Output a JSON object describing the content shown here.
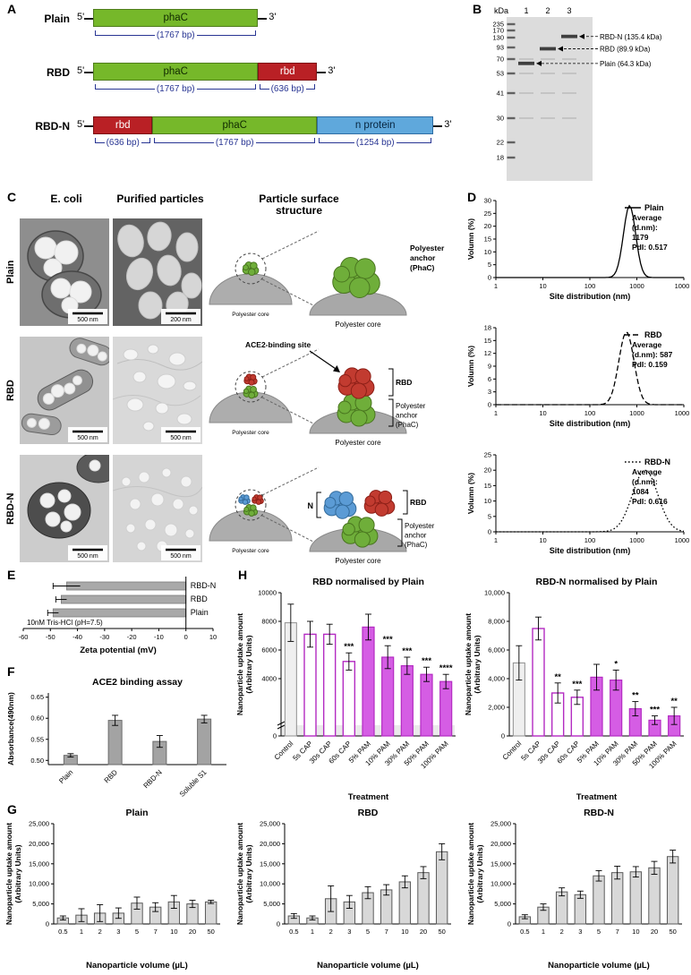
{
  "panelA": {
    "label": "A",
    "constructs": [
      {
        "name": "Plain",
        "five_prime": "5'",
        "three_prime": "3'",
        "segments": [
          {
            "gene": "phaC",
            "bp": 1767,
            "bp_label": "(1767 bp)",
            "fill": "#76b82a",
            "stroke": "#4f7d1c",
            "text_color": "#102a00"
          }
        ]
      },
      {
        "name": "RBD",
        "five_prime": "5'",
        "three_prime": "3'",
        "segments": [
          {
            "gene": "phaC",
            "bp": 1767,
            "bp_label": "(1767 bp)",
            "fill": "#76b82a",
            "stroke": "#4f7d1c",
            "text_color": "#102a00"
          },
          {
            "gene": "rbd",
            "bp": 636,
            "bp_label": "(636 bp)",
            "fill": "#b92025",
            "stroke": "#7e1215",
            "text_color": "#ffffff"
          }
        ]
      },
      {
        "name": "RBD-N",
        "five_prime": "5'",
        "three_prime": "3'",
        "segments": [
          {
            "gene": "rbd",
            "bp": 636,
            "bp_label": "(636 bp)",
            "fill": "#b92025",
            "stroke": "#7e1215",
            "text_color": "#ffffff"
          },
          {
            "gene": "phaC",
            "bp": 1767,
            "bp_label": "(1767 bp)",
            "fill": "#76b82a",
            "stroke": "#4f7d1c",
            "text_color": "#102a00"
          },
          {
            "gene": "n protein",
            "bp": 1254,
            "bp_label": "(1254 bp)",
            "fill": "#5fa8dc",
            "stroke": "#2e6da4",
            "text_color": "#06243e"
          }
        ]
      }
    ]
  },
  "panelB": {
    "label": "B",
    "kda_header": "kDa",
    "lane_numbers": [
      "1",
      "2",
      "3"
    ],
    "ladder": [
      "235",
      "170",
      "130",
      "93",
      "70",
      "53",
      "41",
      "30",
      "22",
      "18"
    ],
    "bands": [
      {
        "lane": 3,
        "kda": 135.4,
        "label": "RBD-N (135.4 kDa)"
      },
      {
        "lane": 2,
        "kda": 89.9,
        "label": "RBD (89.9 kDa)"
      },
      {
        "lane": 1,
        "kda": 64.3,
        "label": "Plain (64.3 kDa)"
      }
    ]
  },
  "panelC": {
    "label": "C",
    "col_headers": [
      "E. coli",
      "Purified particles",
      "Particle surface structure"
    ],
    "diagram_colors": {
      "green": "#6fae3a",
      "green_s": "#49751f",
      "red": "#c23b30",
      "red_s": "#8c1f17",
      "blue": "#5b9bd5",
      "blue_s": "#336b9b",
      "core": "#a8a8a8"
    },
    "rows": [
      {
        "name": "Plain",
        "ecoli_scale": "500 nm",
        "purified_scale": "200 nm",
        "diagram": {
          "core": "Polyester core",
          "anchor": "Polyester anchor (PhaC)"
        }
      },
      {
        "name": "RBD",
        "ecoli_scale": "500 nm",
        "purified_scale": "500 nm",
        "diagram": {
          "core": "Polyester core",
          "anchor": "Polyester anchor (PhaC)",
          "rbd": "RBD",
          "ace2": "ACE2-binding site"
        }
      },
      {
        "name": "RBD-N",
        "ecoli_scale": "500 nm",
        "purified_scale": "500 nm",
        "diagram": {
          "core": "Polyester core",
          "anchor": "Polyester anchor (PhaC)",
          "rbd": "RBD",
          "n": "N"
        }
      }
    ]
  },
  "panelD": {
    "label": "D",
    "xlabel": "Site distribution (nm)",
    "ylabel": "Volumn (%)",
    "xticks": [
      "1",
      "10",
      "100",
      "1000",
      "10000"
    ],
    "plots": [
      {
        "legend": "Plain",
        "line": "solid",
        "peak_nm": 700,
        "peak_pct": 28,
        "sigma_decades": 0.13,
        "ymax": 30,
        "yticks": [
          0,
          5,
          10,
          15,
          20,
          25,
          30
        ],
        "annotation": [
          "Average",
          "(d.nm):",
          "1179",
          "PdI: 0.517"
        ]
      },
      {
        "legend": "RBD",
        "line": "dashed",
        "peak_nm": 600,
        "peak_pct": 17,
        "sigma_decades": 0.16,
        "ymax": 18,
        "yticks": [
          0,
          3,
          6,
          9,
          12,
          15,
          18
        ],
        "annotation": [
          "Average",
          "(d.nm): 587",
          "PdI: 0.159"
        ]
      },
      {
        "legend": "RBD-N",
        "line": "dotted",
        "peak_nm": 1500,
        "peak_pct": 20,
        "sigma_decades": 0.27,
        "ymax": 25,
        "yticks": [
          0,
          5,
          10,
          15,
          20,
          25
        ],
        "annotation": [
          "Average",
          "(d.nm):",
          "1084",
          "PdI: 0.616"
        ]
      }
    ]
  },
  "panelE": {
    "label": "E",
    "categories": [
      "RBD-N",
      "RBD",
      "Plain"
    ],
    "values": [
      -44,
      -46,
      -49
    ],
    "errors": [
      5,
      2,
      2
    ],
    "xmin": -60,
    "xmax": 10,
    "xticks": [
      -60,
      -50,
      -40,
      -30,
      -20,
      -10,
      0,
      10
    ],
    "xlabel": "Zeta potential (mV)",
    "note": "10nM Tris-HCl (pH=7.5)",
    "bar_fill": "#a9a9a9"
  },
  "panelF": {
    "label": "F",
    "title": "ACE2 binding assay",
    "ylabel_lines": [
      "Absorbance(490nm)"
    ],
    "categories": [
      "Plain",
      "RBD",
      "RBD-N",
      "Soluble S1"
    ],
    "values": [
      0.512,
      0.595,
      0.545,
      0.598
    ],
    "errors": [
      0.004,
      0.012,
      0.014,
      0.009
    ],
    "ymin": 0.49,
    "ymax": 0.66,
    "yticks": [
      0.5,
      0.55,
      0.6,
      0.65
    ],
    "ytick_labels": [
      "0.50",
      "0.55",
      "0.60",
      "0.65"
    ],
    "bar_fill": "#a3a3a3",
    "bar_stroke": "#6b6b6b"
  },
  "panelG": {
    "label": "G",
    "ylabel_lines": [
      "Nanoparticle uptake amount",
      "(Arbitrary Units)"
    ],
    "xlabel": "Nanoparticle volume (µL)",
    "categories": [
      "0.5",
      "1",
      "2",
      "3",
      "5",
      "7",
      "10",
      "20",
      "50"
    ],
    "ymax": 25000,
    "yticks": [
      0,
      5000,
      10000,
      15000,
      20000,
      25000
    ],
    "ytick_labels": [
      "0",
      "5,000",
      "10,000",
      "15,000",
      "20,000",
      "25,000"
    ],
    "bar_fill": "#d8d8d8",
    "bar_stroke": "#5a5a5a",
    "charts": [
      {
        "title": "Plain",
        "values": [
          1500,
          2200,
          2700,
          2700,
          5200,
          4200,
          5500,
          5000,
          5500
        ],
        "errors": [
          500,
          1600,
          2100,
          1300,
          1500,
          1100,
          1600,
          900,
          400
        ]
      },
      {
        "title": "RBD",
        "values": [
          2000,
          1500,
          6300,
          5500,
          7800,
          8500,
          10500,
          12800,
          18000
        ],
        "errors": [
          600,
          500,
          3200,
          1600,
          1500,
          1300,
          1500,
          1500,
          2000
        ]
      },
      {
        "title": "RBD-N",
        "values": [
          1800,
          4200,
          8000,
          7300,
          12000,
          12800,
          13000,
          14000,
          16800
        ],
        "errors": [
          500,
          800,
          1000,
          900,
          1300,
          1600,
          1300,
          1600,
          1600
        ]
      }
    ]
  },
  "panelH": {
    "label": "H",
    "ylabel_lines": [
      "Nanoparticle uptake amount",
      "(Arbitrary Units)"
    ],
    "xlabel": "Treatment",
    "categories": [
      "Control",
      "5s CAP",
      "30s CAP",
      "60s CAP",
      "5% PAM",
      "10% PAM",
      "30% PAM",
      "50% PAM",
      "100% PAM"
    ],
    "colors": {
      "magenta_fill": "#d55de4",
      "magenta_stroke": "#b32bc2",
      "control_fill": "#efefef",
      "control_stroke": "#8f8f8f"
    },
    "styles": [
      "control",
      "hollow",
      "hollow",
      "hollow",
      "filled",
      "filled",
      "filled",
      "filled",
      "filled"
    ],
    "charts": [
      {
        "title": "RBD normalised by Plain",
        "ymax": 10000,
        "yticks": [
          0,
          4000,
          6000,
          8000,
          10000
        ],
        "ytick_labels": [
          "0",
          "4000",
          "6000",
          "8000",
          "10000"
        ],
        "axis_break": true,
        "values": [
          7900,
          7100,
          7100,
          5200,
          7600,
          5500,
          4900,
          4300,
          3800
        ],
        "errors": [
          1300,
          900,
          700,
          600,
          900,
          800,
          600,
          500,
          500
        ],
        "sig": [
          "",
          "",
          "",
          "***",
          "",
          "***",
          "***",
          "***",
          "****"
        ]
      },
      {
        "title": "RBD-N normalised by Plain",
        "ymax": 10000,
        "yticks": [
          0,
          2000,
          4000,
          6000,
          8000,
          10000
        ],
        "ytick_labels": [
          "0",
          "2,000",
          "4,000",
          "6,000",
          "8,000",
          "10,000"
        ],
        "values": [
          5100,
          7500,
          3000,
          2700,
          4100,
          3900,
          1900,
          1100,
          1400
        ],
        "errors": [
          1200,
          800,
          700,
          500,
          900,
          700,
          500,
          300,
          600
        ],
        "sig": [
          "",
          "",
          "**",
          "***",
          "",
          "*",
          "**",
          "***",
          "**"
        ]
      }
    ]
  }
}
